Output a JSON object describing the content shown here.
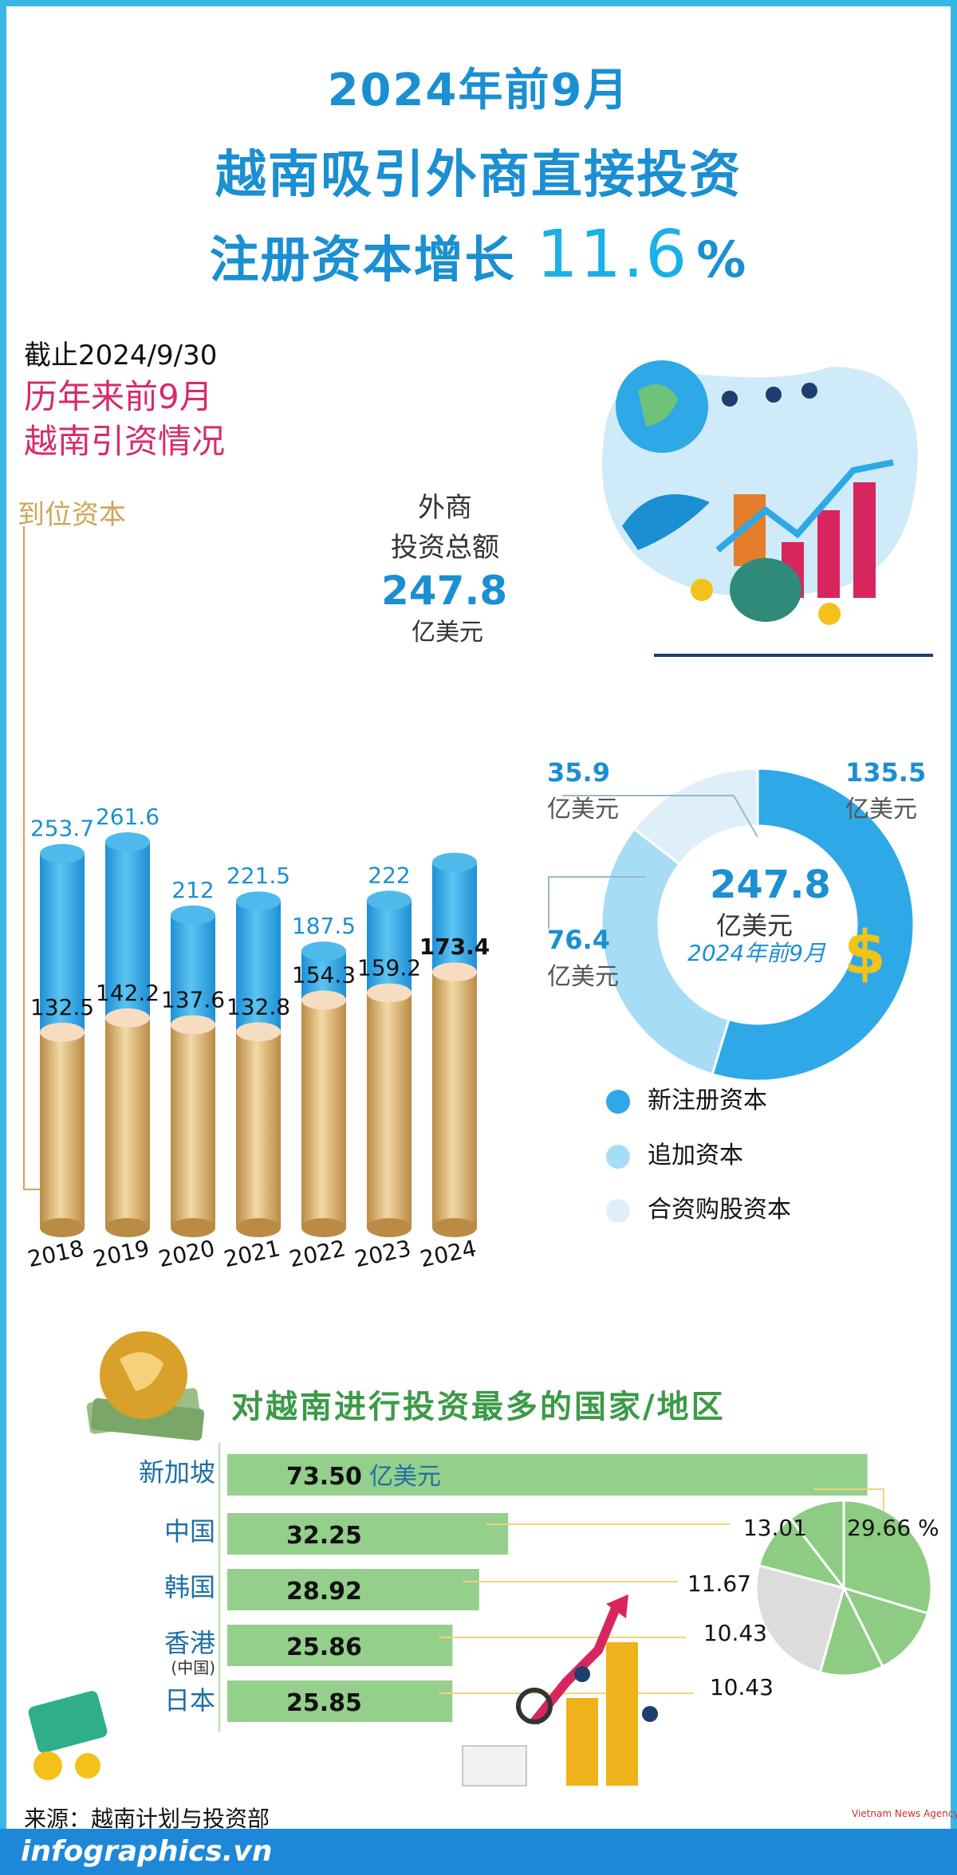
{
  "title": {
    "line1": "2024年前9月",
    "line2": "越南吸引外商直接投资",
    "line3": "注册资本增长",
    "highlight": "11.6",
    "percent": "%"
  },
  "as_of": "截止2024/9/30",
  "subtitle": "历年来前9月\n越南引资情况",
  "labels": {
    "disbursed": "到位资本",
    "fdi_total": "外商\n投资总额",
    "fdi_total_value": "247.8",
    "unit": "亿美元"
  },
  "donut": {
    "center_value": "247.8",
    "center_unit": "亿美元",
    "center_period": "2024年前9月",
    "values": [
      "135.5",
      "76.4",
      "35.9"
    ],
    "legend": [
      "新注册资本",
      "追加资本",
      "合资购股资本"
    ]
  },
  "section2_title": "对越南进行投资最多的国家/地区",
  "countries": [
    "新加坡",
    "中国",
    "韩国",
    "香港",
    "(中国)",
    "日本"
  ],
  "source": "来源：越南计划与投资部",
  "footer": "infographics.vn",
  "agency": "Vietnam News Agency",
  "colors": {
    "accent_blue": "#1a8fd2",
    "bar_blue": "#2ea8e6",
    "gold": "#d2a459",
    "green": "#8dcc82",
    "pink": "#d72b6b"
  },
  "chart_data": [
    {
      "type": "bar",
      "categories": [
        "2018",
        "2019",
        "2020",
        "2021",
        "2022",
        "2023",
        "2024"
      ],
      "series": [
        {
          "name": "外商投资总额",
          "values": [
            253.7,
            261.6,
            212,
            221.5,
            187.5,
            222,
            247.8
          ]
        },
        {
          "name": "到位资本",
          "values": [
            132.5,
            142.2,
            137.6,
            132.8,
            154.3,
            159.2,
            173.4
          ]
        }
      ],
      "unit": "亿美元"
    },
    {
      "type": "pie",
      "labels": [
        "新注册资本",
        "追加资本",
        "合资购股资本"
      ],
      "values": [
        135.5,
        76.4,
        35.9
      ],
      "total": 247.8
    },
    {
      "type": "bar",
      "orientation": "horizontal",
      "categories": [
        "新加坡",
        "中国",
        "韩国",
        "香港(中国)",
        "日本"
      ],
      "values": [
        73.5,
        32.25,
        28.92,
        25.86,
        25.85
      ],
      "unit": "亿美元"
    },
    {
      "type": "pie",
      "values": [
        29.66,
        13.01,
        11.67,
        10.43,
        10.43
      ],
      "labels": [
        "29.66 %",
        "13.01",
        "11.67",
        "10.43",
        "10.43"
      ]
    }
  ]
}
